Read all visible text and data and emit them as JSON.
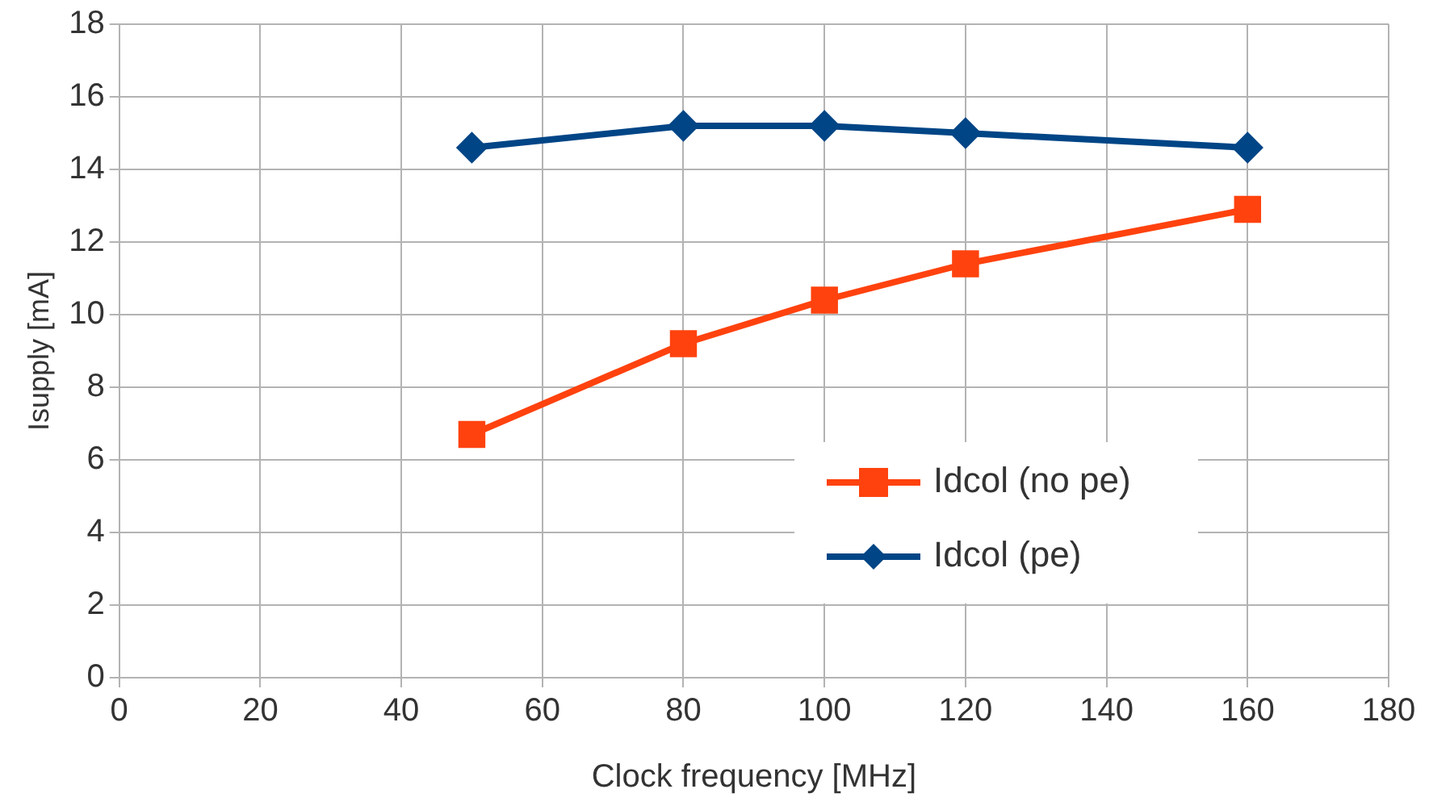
{
  "chart_data": {
    "type": "line",
    "xlabel": "Clock frequency [MHz]",
    "ylabel": "Isupply [mA]",
    "xlim": [
      0,
      180
    ],
    "xticks": [
      0,
      20,
      40,
      60,
      80,
      100,
      120,
      140,
      160,
      180
    ],
    "ylim": [
      0,
      18
    ],
    "yticks": [
      0,
      2,
      4,
      6,
      8,
      10,
      12,
      14,
      16,
      18
    ],
    "grid": true,
    "legend": "bottom right",
    "line_style": "solid",
    "series": [
      {
        "name": "Idcol (no pe)",
        "color": "#ff420e",
        "marker": "square",
        "x": [
          50,
          80,
          100,
          120,
          160
        ],
        "values": [
          6.7,
          9.2,
          10.4,
          11.4,
          12.9
        ]
      },
      {
        "name": "Idcol (pe)",
        "color": "#004586",
        "marker": "diamond",
        "x": [
          50,
          80,
          100,
          120,
          160
        ],
        "values": [
          14.6,
          15.2,
          15.2,
          15.0,
          14.6
        ]
      }
    ]
  }
}
